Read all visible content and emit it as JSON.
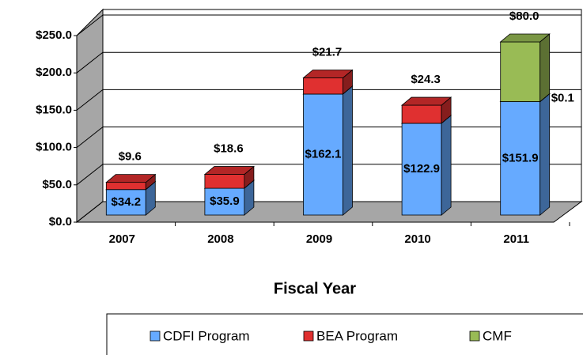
{
  "chart_data": {
    "type": "bar3d_stacked",
    "x_label": "Fiscal Year",
    "categories": [
      "2007",
      "2008",
      "2009",
      "2010",
      "2011"
    ],
    "series": [
      {
        "name": "CDFI Program",
        "color": "#66aaff",
        "values": [
          34.2,
          35.9,
          162.1,
          122.9,
          151.9
        ],
        "value_labels": [
          "$34.2",
          "$35.9",
          "$162.1",
          "$122.9",
          "$151.9"
        ]
      },
      {
        "name": "BEA Program",
        "color": "#e03030",
        "values": [
          9.6,
          18.6,
          21.7,
          24.3,
          0.1
        ],
        "value_labels": [
          "$9.6",
          "$18.6",
          "$21.7",
          "$24.3",
          "$0.1"
        ]
      },
      {
        "name": "CMF",
        "color": "#99bb55",
        "values": [
          null,
          null,
          null,
          null,
          80.0
        ],
        "value_labels": [
          null,
          null,
          null,
          null,
          "$80.0"
        ]
      }
    ],
    "ylim": [
      0,
      250
    ],
    "yticks": [
      {
        "value": 0,
        "label": "$0.0"
      },
      {
        "value": 50,
        "label": "$50.0"
      },
      {
        "value": 100,
        "label": "$100.0"
      },
      {
        "value": 150,
        "label": "$150.0"
      },
      {
        "value": 200,
        "label": "$200.0"
      },
      {
        "value": 250,
        "label": "$250.0"
      }
    ],
    "grid": true,
    "legend": "bottom"
  }
}
